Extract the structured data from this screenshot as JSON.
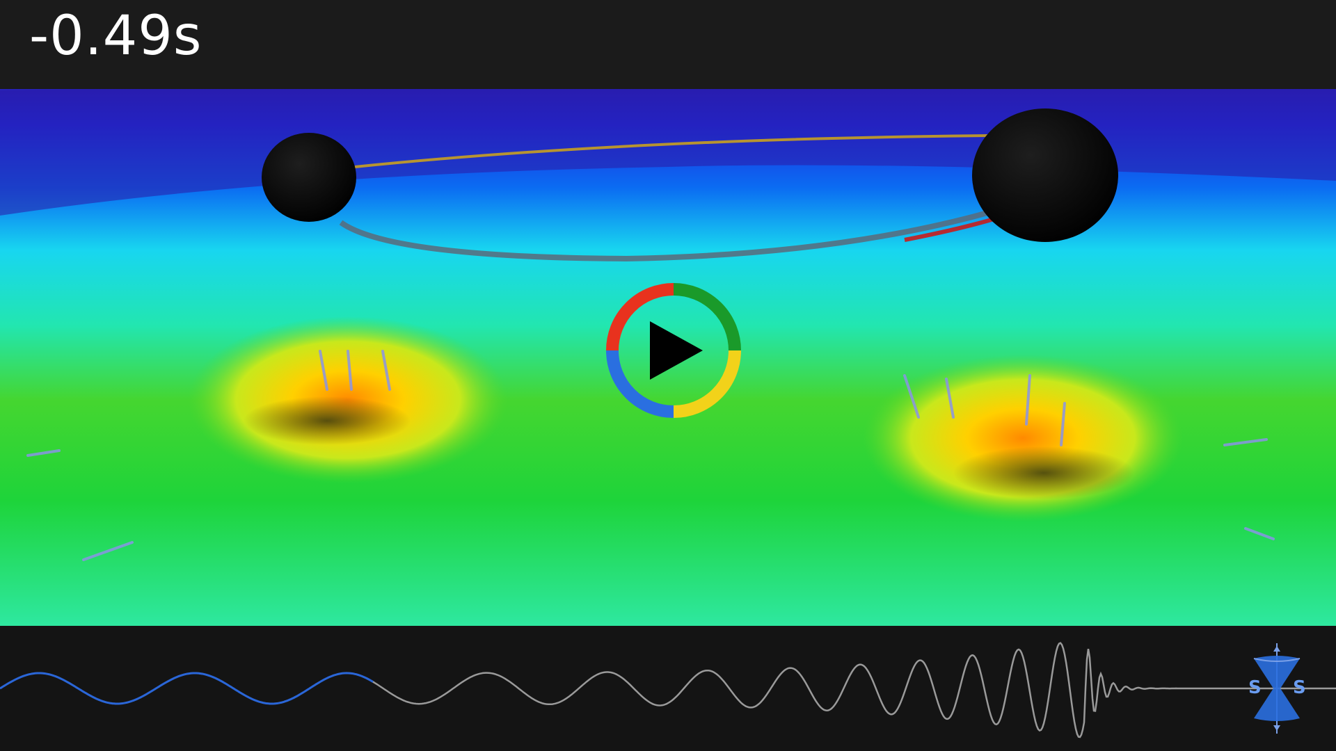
{
  "video": {
    "time_label": "-0.49s",
    "playback_progress": 0.14
  },
  "controls": {
    "play_icon": "play-icon",
    "ring_colors": [
      "#e8321e",
      "#1a9a2a",
      "#f2d21a",
      "#2a6fe0"
    ]
  },
  "logo": {
    "icon": "sxs-logo-icon",
    "letters": "S X S"
  },
  "colors": {
    "waveform_played": "#2a66d8",
    "waveform_unplayed": "#9a9a9a"
  }
}
